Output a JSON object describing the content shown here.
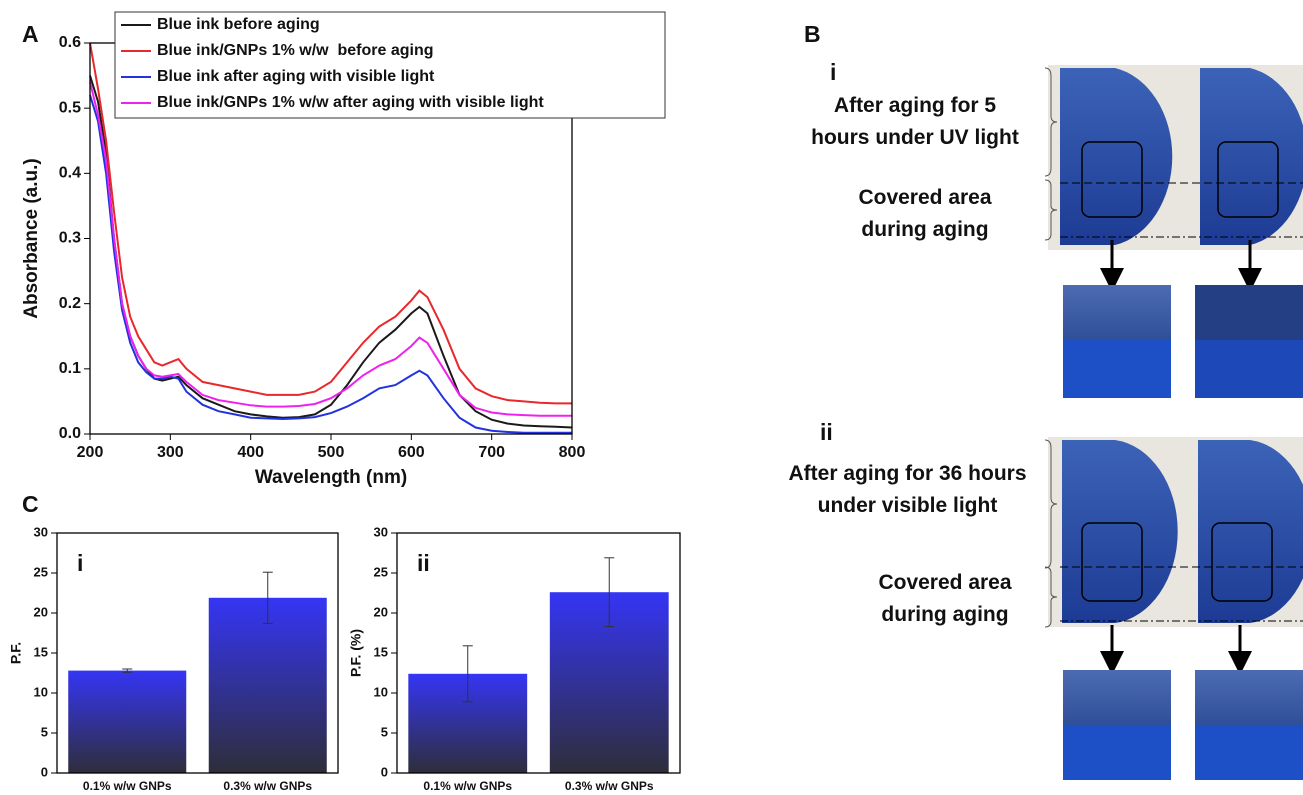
{
  "panel_labels": [
    "A",
    "B",
    "C"
  ],
  "chart_data": [
    {
      "type": "line",
      "ylabel": "Absorbance (a.u.)",
      "xlabel": "Wavelength (nm)",
      "x": [
        200,
        210,
        220,
        230,
        240,
        250,
        260,
        270,
        280,
        290,
        300,
        310,
        320,
        340,
        360,
        380,
        400,
        420,
        440,
        460,
        480,
        500,
        520,
        540,
        560,
        580,
        600,
        610,
        620,
        640,
        660,
        680,
        700,
        720,
        740,
        760,
        780,
        800
      ],
      "series": [
        {
          "name": "Blue ink before aging",
          "color": "#1a1a1a",
          "values": [
            0.55,
            0.51,
            0.43,
            0.3,
            0.2,
            0.15,
            0.12,
            0.1,
            0.085,
            0.082,
            0.085,
            0.088,
            0.075,
            0.055,
            0.045,
            0.035,
            0.03,
            0.027,
            0.025,
            0.026,
            0.03,
            0.045,
            0.075,
            0.11,
            0.14,
            0.16,
            0.185,
            0.195,
            0.185,
            0.12,
            0.06,
            0.035,
            0.022,
            0.016,
            0.013,
            0.012,
            0.011,
            0.01
          ]
        },
        {
          "name": "Blue ink/GNPs 1% w/w  before aging",
          "color": "#e8282a",
          "values": [
            0.6,
            0.53,
            0.45,
            0.34,
            0.24,
            0.18,
            0.15,
            0.13,
            0.11,
            0.105,
            0.11,
            0.115,
            0.1,
            0.08,
            0.075,
            0.07,
            0.065,
            0.06,
            0.06,
            0.06,
            0.065,
            0.08,
            0.11,
            0.14,
            0.165,
            0.18,
            0.205,
            0.22,
            0.21,
            0.16,
            0.1,
            0.07,
            0.058,
            0.052,
            0.05,
            0.048,
            0.047,
            0.047
          ]
        },
        {
          "name": "Blue ink after aging with visible light",
          "color": "#2233dd",
          "values": [
            0.52,
            0.48,
            0.4,
            0.28,
            0.19,
            0.14,
            0.11,
            0.095,
            0.085,
            0.085,
            0.088,
            0.085,
            0.065,
            0.045,
            0.035,
            0.03,
            0.025,
            0.024,
            0.023,
            0.024,
            0.026,
            0.032,
            0.042,
            0.055,
            0.07,
            0.075,
            0.09,
            0.097,
            0.09,
            0.055,
            0.025,
            0.01,
            0.005,
            0.003,
            0.002,
            0.002,
            0.002,
            0.002
          ]
        },
        {
          "name": "Blue ink/GNPs 1% w/w after aging with visible light",
          "color": "#ee22ee",
          "values": [
            0.54,
            0.49,
            0.42,
            0.3,
            0.2,
            0.15,
            0.12,
            0.1,
            0.09,
            0.088,
            0.09,
            0.092,
            0.08,
            0.06,
            0.052,
            0.048,
            0.044,
            0.042,
            0.042,
            0.043,
            0.046,
            0.055,
            0.07,
            0.09,
            0.105,
            0.115,
            0.135,
            0.148,
            0.14,
            0.1,
            0.06,
            0.04,
            0.033,
            0.03,
            0.029,
            0.028,
            0.028,
            0.028
          ]
        }
      ],
      "xlim": [
        200,
        800
      ],
      "xticks": [
        200,
        300,
        400,
        500,
        600,
        700,
        800
      ],
      "ylim": [
        0,
        0.6
      ],
      "yticks": [
        {
          "value": 0,
          "label": "0.0"
        },
        0.1,
        0.2,
        0.3,
        0.4,
        0.5,
        0.6
      ]
    },
    {
      "type": "bar",
      "panel": "i",
      "ylabel": "P.F.",
      "categories": [
        "0.1% w/w GNPs",
        "0.3% w/w GNPs"
      ],
      "values": [
        12.8,
        21.9
      ],
      "errors": [
        0.2,
        3.2
      ],
      "color": "#3535f5",
      "ylim": [
        0,
        30
      ],
      "yticks": [
        0,
        5,
        10,
        15,
        20,
        25,
        30
      ]
    },
    {
      "type": "bar",
      "panel": "ii",
      "ylabel": "P.F. (%)",
      "categories": [
        "0.1% w/w GNPs",
        "0.3% w/w GNPs"
      ],
      "values": [
        12.4,
        22.6
      ],
      "errors": [
        3.5,
        4.3
      ],
      "color": "#3535f5",
      "ylim": [
        0,
        30
      ],
      "yticks": [
        0,
        5,
        10,
        15,
        20,
        25,
        30
      ]
    }
  ],
  "panel_b": [
    {
      "label": "i",
      "caption": "After aging for 5\nhours under UV light",
      "covered": "Covered area\nduring aging"
    },
    {
      "label": "ii",
      "caption": "After aging for 36 hours\nunder visible light",
      "covered": "Covered area\nduring aging"
    }
  ]
}
